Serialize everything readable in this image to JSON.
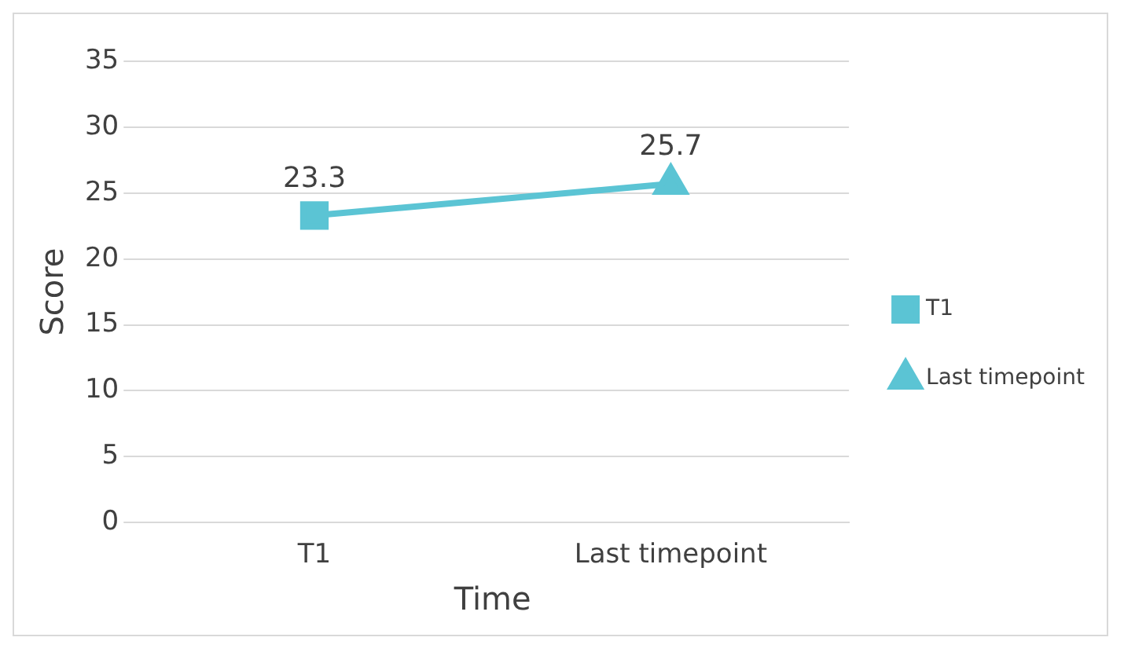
{
  "chart_data": {
    "type": "line",
    "xlabel": "Time",
    "ylabel": "Score",
    "categories": [
      "T1",
      "Last timepoint"
    ],
    "series": [
      {
        "color": "#5bc4d4",
        "values": [
          23.3,
          25.7
        ],
        "marker": "none"
      },
      {
        "type": "scatter",
        "name": "T1",
        "color": "#5bc4d4",
        "x": [
          "T1"
        ],
        "values": [
          23.3
        ],
        "value_labels": [
          "23.3"
        ],
        "marker": "square"
      },
      {
        "type": "scatter",
        "name": "Last timepoint",
        "color": "#5bc4d4",
        "x": [
          "Last timepoint"
        ],
        "values": [
          25.7
        ],
        "value_labels": [
          "25.7"
        ],
        "marker": "triangle"
      }
    ],
    "ylim": [
      0,
      35
    ],
    "yticks": [
      0,
      5,
      10,
      15,
      20,
      25,
      30,
      35
    ],
    "grid": "y",
    "legend": "right"
  }
}
